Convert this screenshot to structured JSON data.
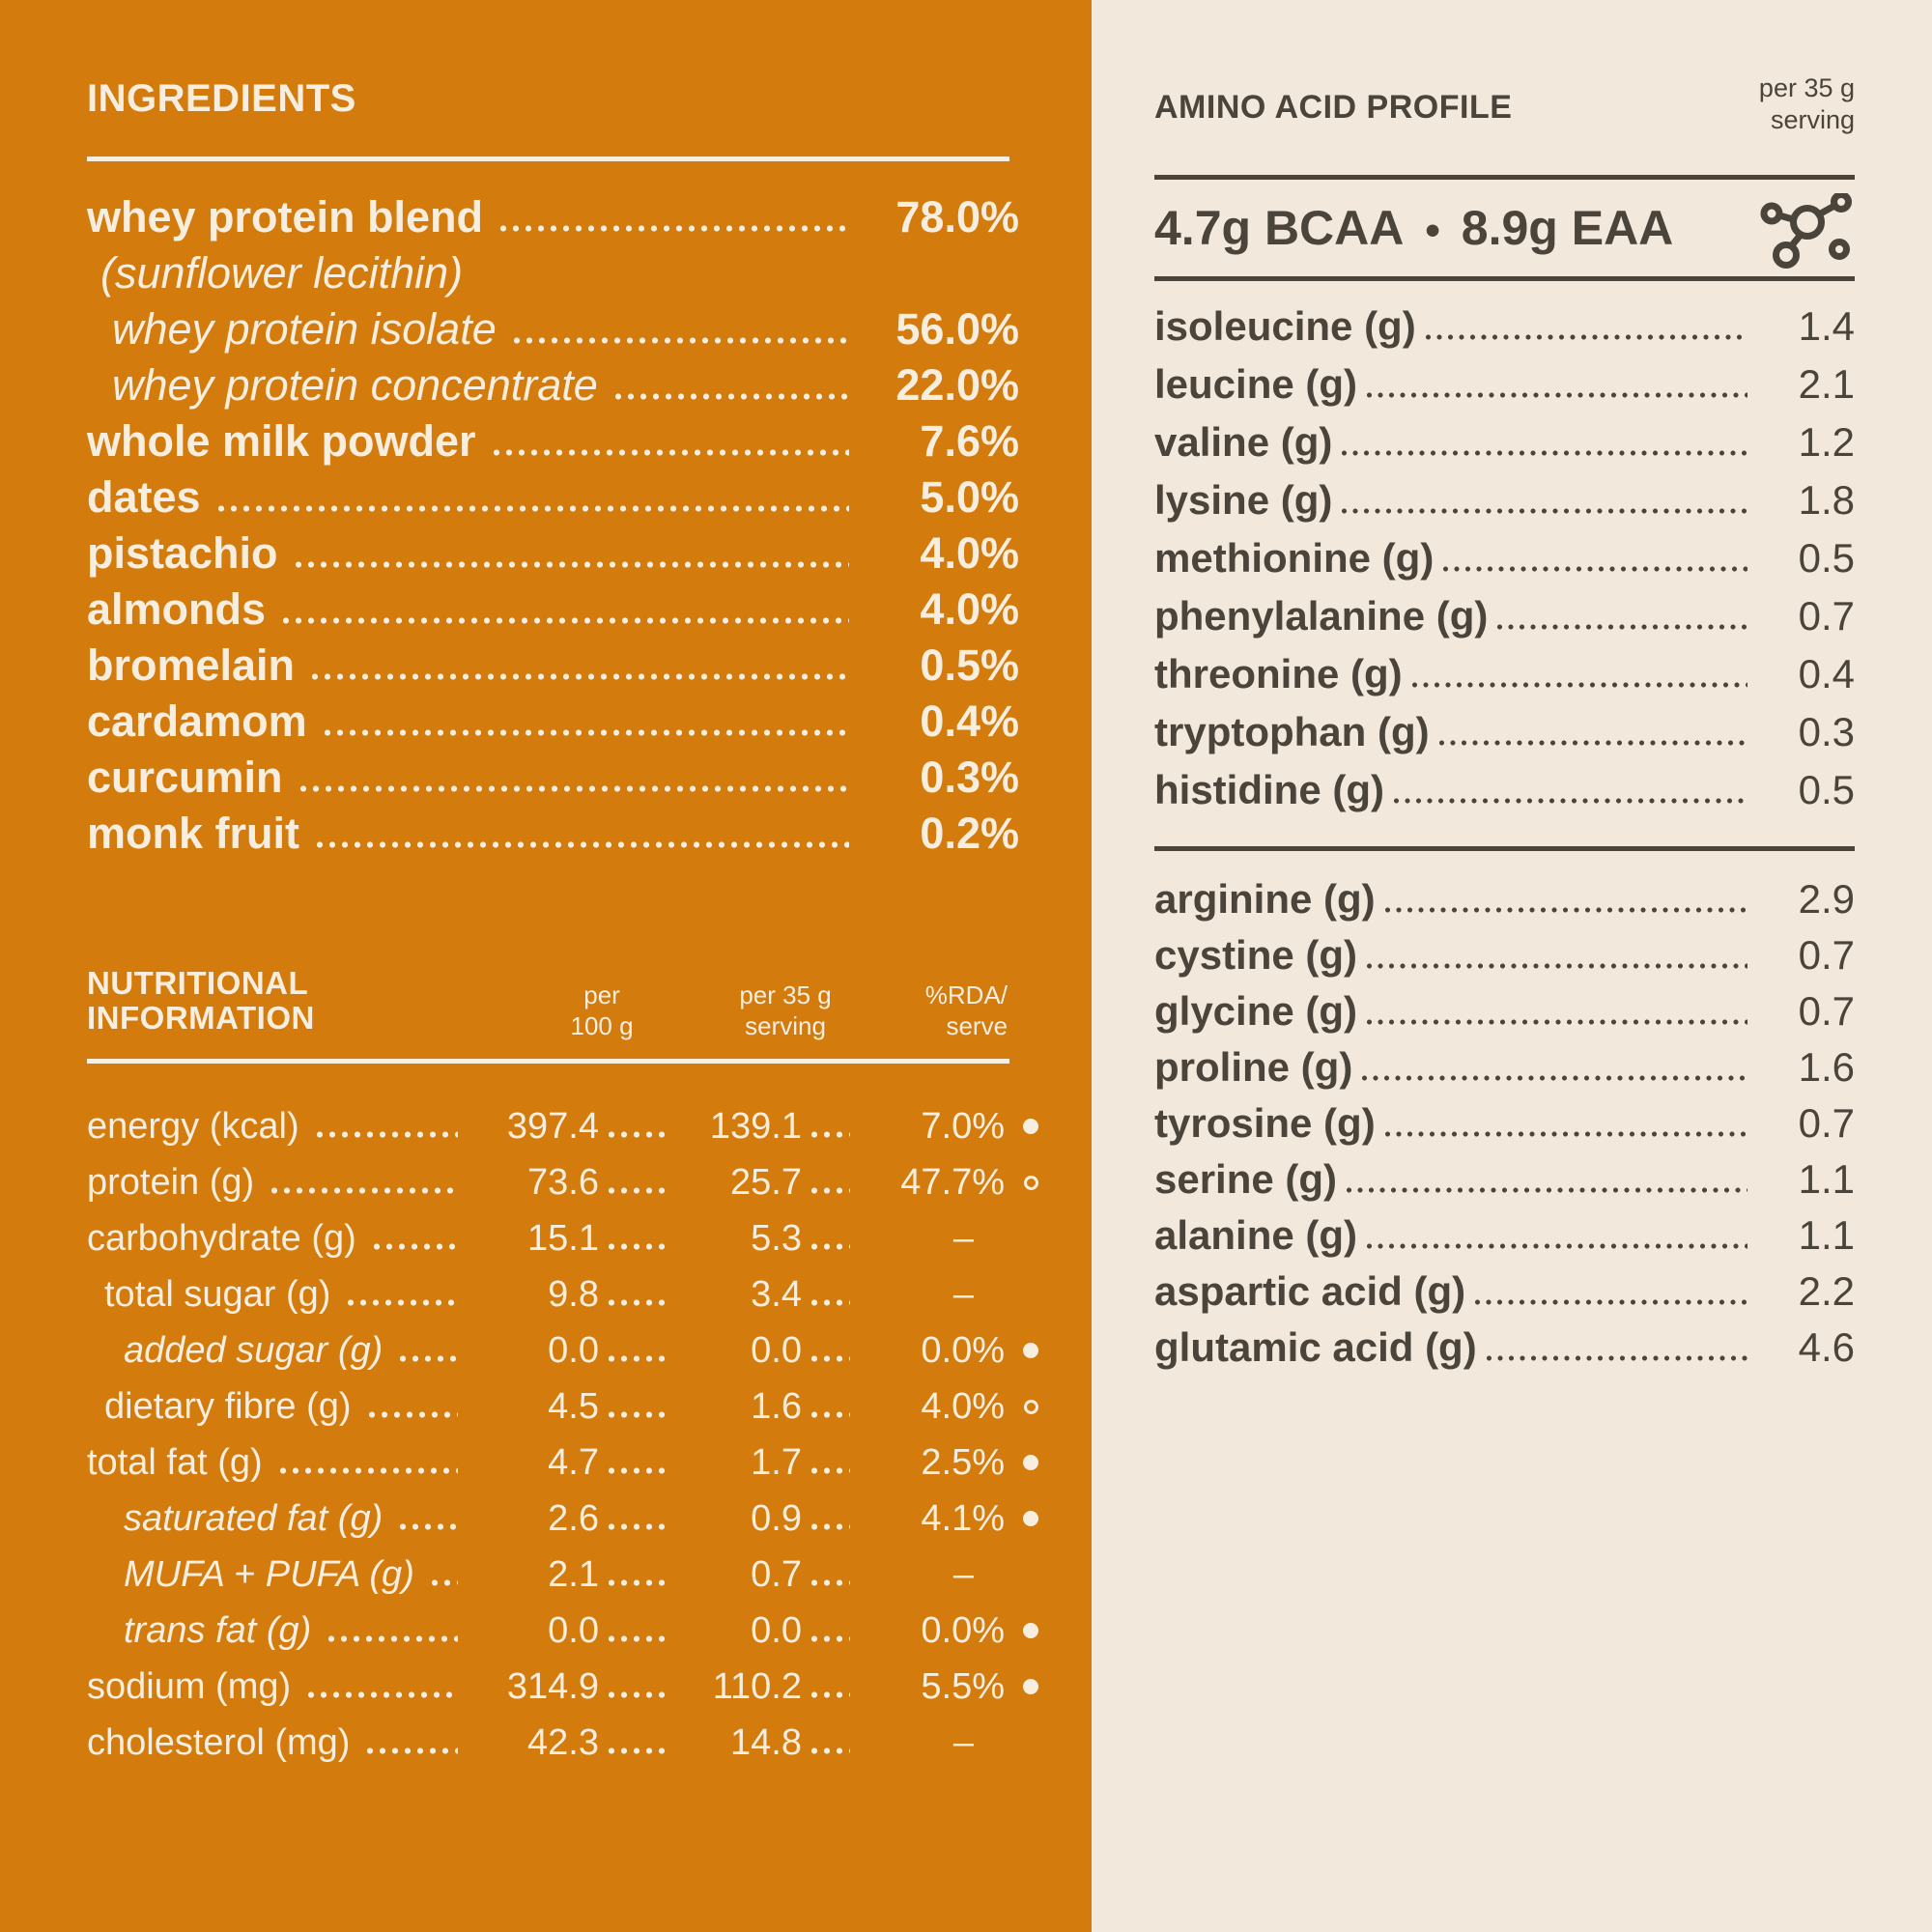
{
  "palette": {
    "left_background": "#D37B0C",
    "right_background": "#F2E8DB",
    "left_text": "#F7EEDF",
    "right_text": "#4A443B"
  },
  "ingredients": {
    "title": "INGREDIENTS",
    "items": [
      {
        "label": "whey protein blend",
        "value": "78.0%",
        "indent": 0,
        "italic": false
      },
      {
        "label": "(sunflower lecithin)",
        "value": "",
        "indent": 1,
        "italic": true
      },
      {
        "label": "whey protein isolate",
        "value": "56.0%",
        "indent": 2,
        "italic": true
      },
      {
        "label": "whey protein concentrate",
        "value": "22.0%",
        "indent": 2,
        "italic": true
      },
      {
        "label": "whole milk powder",
        "value": "7.6%",
        "indent": 0,
        "italic": false
      },
      {
        "label": "dates",
        "value": "5.0%",
        "indent": 0,
        "italic": false
      },
      {
        "label": "pistachio",
        "value": "4.0%",
        "indent": 0,
        "italic": false
      },
      {
        "label": "almonds",
        "value": "4.0%",
        "indent": 0,
        "italic": false
      },
      {
        "label": "bromelain",
        "value": "0.5%",
        "indent": 0,
        "italic": false
      },
      {
        "label": "cardamom",
        "value": "0.4%",
        "indent": 0,
        "italic": false
      },
      {
        "label": "curcumin",
        "value": "0.3%",
        "indent": 0,
        "italic": false
      },
      {
        "label": "monk fruit",
        "value": "0.2%",
        "indent": 0,
        "italic": false
      }
    ]
  },
  "nutrition": {
    "title": "NUTRITIONAL INFORMATION",
    "col_headers": [
      "per\n100 g",
      "per 35 g\nserving",
      "%RDA/\nserve"
    ],
    "rows": [
      {
        "label": "energy (kcal)",
        "per100": "397.4",
        "per35": "139.1",
        "rda": "7.0%",
        "marker": "filled",
        "indent": 0,
        "italic": false
      },
      {
        "label": "protein (g)",
        "per100": "73.6",
        "per35": "25.7",
        "rda": "47.7%",
        "marker": "open",
        "indent": 0,
        "italic": false
      },
      {
        "label": "carbohydrate (g)",
        "per100": "15.1",
        "per35": "5.3",
        "rda": "–",
        "marker": "none",
        "indent": 0,
        "italic": false
      },
      {
        "label": "total sugar (g)",
        "per100": "9.8",
        "per35": "3.4",
        "rda": "–",
        "marker": "none",
        "indent": 1,
        "italic": false
      },
      {
        "label": "added sugar (g)",
        "per100": "0.0",
        "per35": "0.0",
        "rda": "0.0%",
        "marker": "filled",
        "indent": 2,
        "italic": true
      },
      {
        "label": "dietary fibre (g)",
        "per100": "4.5",
        "per35": "1.6",
        "rda": "4.0%",
        "marker": "open",
        "indent": 1,
        "italic": false
      },
      {
        "label": "total fat (g)",
        "per100": "4.7",
        "per35": "1.7",
        "rda": "2.5%",
        "marker": "filled",
        "indent": 0,
        "italic": false
      },
      {
        "label": "saturated fat (g)",
        "per100": "2.6",
        "per35": "0.9",
        "rda": "4.1%",
        "marker": "filled",
        "indent": 2,
        "italic": true
      },
      {
        "label": "MUFA + PUFA (g)",
        "per100": "2.1",
        "per35": "0.7",
        "rda": "–",
        "marker": "none",
        "indent": 2,
        "italic": true
      },
      {
        "label": "trans fat (g)",
        "per100": "0.0",
        "per35": "0.0",
        "rda": "0.0%",
        "marker": "filled",
        "indent": 2,
        "italic": true
      },
      {
        "label": "sodium (mg)",
        "per100": "314.9",
        "per35": "110.2",
        "rda": "5.5%",
        "marker": "filled",
        "indent": 0,
        "italic": false
      },
      {
        "label": "cholesterol (mg)",
        "per100": "42.3",
        "per35": "14.8",
        "rda": "–",
        "marker": "none",
        "indent": 0,
        "italic": false
      }
    ]
  },
  "amino": {
    "title": "AMINO ACID PROFILE",
    "serving_note": "per 35 g\nserving",
    "bcaa": "4.7g BCAA",
    "separator": "•",
    "eaa": "8.9g EAA",
    "icon": "molecule-icon",
    "essential": [
      {
        "label": "isoleucine (g)",
        "value": "1.4"
      },
      {
        "label": "leucine (g)",
        "value": "2.1"
      },
      {
        "label": "valine (g)",
        "value": "1.2"
      },
      {
        "label": "lysine (g)",
        "value": "1.8"
      },
      {
        "label": "methionine (g)",
        "value": "0.5"
      },
      {
        "label": "phenylalanine (g)",
        "value": "0.7"
      },
      {
        "label": "threonine (g)",
        "value": "0.4"
      },
      {
        "label": "tryptophan (g)",
        "value": "0.3"
      },
      {
        "label": "histidine (g)",
        "value": "0.5"
      }
    ],
    "other": [
      {
        "label": "arginine (g)",
        "value": "2.9"
      },
      {
        "label": "cystine (g)",
        "value": "0.7"
      },
      {
        "label": "glycine (g)",
        "value": "0.7"
      },
      {
        "label": "proline (g)",
        "value": "1.6"
      },
      {
        "label": "tyrosine (g)",
        "value": "0.7"
      },
      {
        "label": "serine (g)",
        "value": "1.1"
      },
      {
        "label": "alanine (g)",
        "value": "1.1"
      },
      {
        "label": "aspartic acid (g)",
        "value": "2.2"
      },
      {
        "label": "glutamic acid (g)",
        "value": "4.6"
      }
    ]
  }
}
